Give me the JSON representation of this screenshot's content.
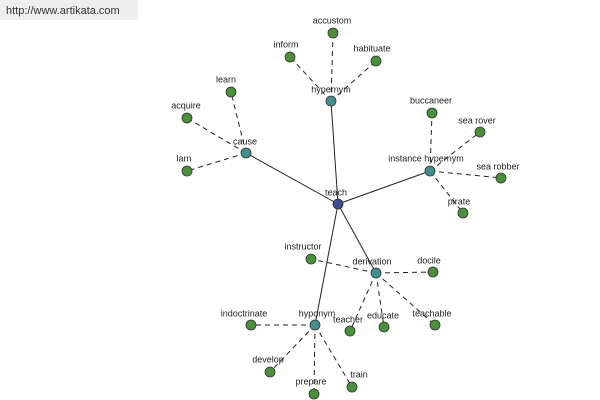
{
  "header": {
    "url": "http://www.artikata.com"
  },
  "center": {
    "label": "teach"
  },
  "relations": [
    {
      "label": "hypernym",
      "terms": [
        "accustom",
        "inform",
        "habituate"
      ]
    },
    {
      "label": "cause",
      "terms": [
        "learn",
        "acquire",
        "larn"
      ]
    },
    {
      "label": "instance hypernym",
      "terms": [
        "buccaneer",
        "sea rover",
        "sea robber",
        "pirate"
      ]
    },
    {
      "label": "derivation",
      "terms": [
        "instructor",
        "docile",
        "teachable",
        "teacher",
        "educate"
      ]
    },
    {
      "label": "hyponym",
      "terms": [
        "indoctrinate",
        "develop",
        "prepare",
        "train"
      ]
    }
  ]
}
